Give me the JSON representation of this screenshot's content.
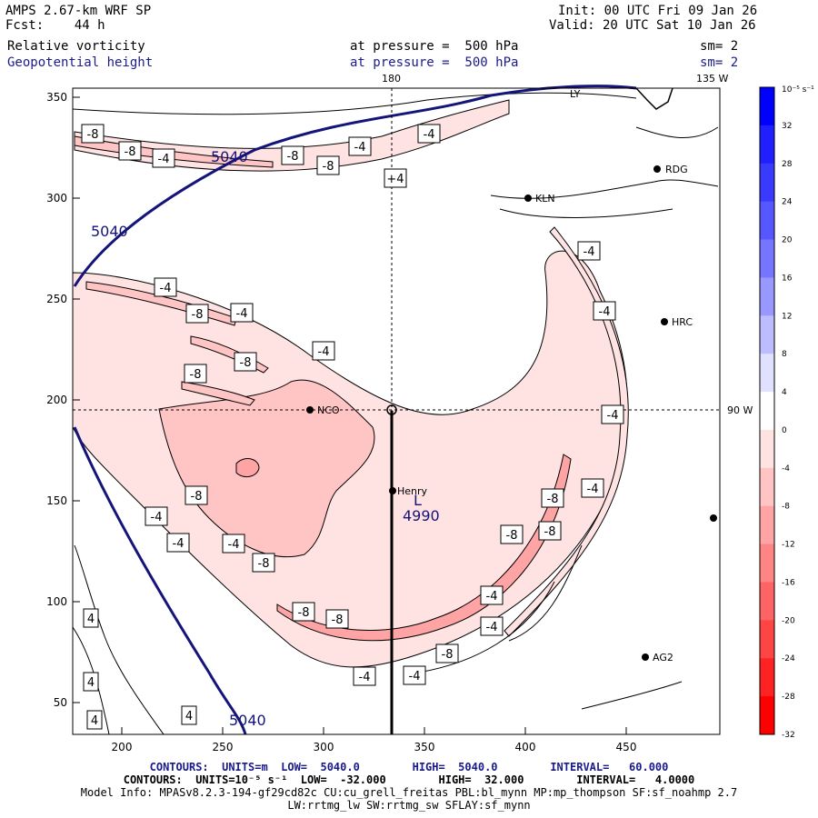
{
  "header": {
    "title": "AMPS 2.67-km WRF SP",
    "fcst": "Fcst:    44 h",
    "init": "Init: 00 UTC Fri 09 Jan 26",
    "valid": "Valid: 20 UTC Sat 10 Jan 26",
    "field1_name": "Relative vorticity",
    "field1_level": "at pressure =  500 hPa",
    "field1_sm": "sm= 2",
    "field2_name": "Geopotential height",
    "field2_level": "at pressure =  500 hPa",
    "field2_sm": "sm= 2"
  },
  "map": {
    "lon_180": "180",
    "lon_135w": "135 W",
    "lon_90w": "90 W",
    "x_ticks": [
      "200",
      "250",
      "300",
      "350",
      "400",
      "450"
    ],
    "y_ticks": [
      "350",
      "300",
      "250",
      "200",
      "150",
      "100",
      "50"
    ],
    "stations": [
      {
        "name": "RDG"
      },
      {
        "name": "KLN"
      },
      {
        "name": "HRC"
      },
      {
        "name": "NCO"
      },
      {
        "name": "Henry"
      },
      {
        "name": "AG2"
      },
      {
        "name": "LY"
      }
    ],
    "low_label": "L",
    "low_value": "4990",
    "height_labels": [
      "5040",
      "5040",
      "5040"
    ],
    "vort_labels": [
      "-8",
      "-8",
      "-4",
      "-8",
      "-8",
      "-4",
      "-4",
      "-8",
      "+4",
      "-4",
      "-8",
      "-4",
      "-4",
      "-8",
      "-4",
      "-8",
      "-4",
      "-8",
      "-8",
      "-4",
      "-8",
      "-4",
      "-4",
      "-8",
      "-4",
      "-8",
      "-8",
      "-4",
      "-4",
      "-8",
      "-4",
      "-4",
      "-4",
      "4",
      "4",
      "4",
      "4"
    ]
  },
  "colorbar": {
    "units": "10⁻⁵ s⁻¹",
    "labels": [
      "32",
      "28",
      "24",
      "20",
      "16",
      "12",
      "8",
      "4",
      "0",
      "-4",
      "-8",
      "-12",
      "-16",
      "-20",
      "-24",
      "-28",
      "-32"
    ],
    "colors": [
      "#0000ff",
      "#1f1fff",
      "#3a3aff",
      "#5757ff",
      "#7575ff",
      "#9898ff",
      "#bcbcff",
      "#e0e0ff",
      "#ffffff",
      "#ffe2e2",
      "#ffc4c4",
      "#ffa4a4",
      "#ff8484",
      "#ff6464",
      "#ff4444",
      "#ff2222",
      "#ff0000"
    ]
  },
  "footer": {
    "line1": "CONTOURS:  UNITS=m  LOW=  5040.0        HIGH=  5040.0        INTERVAL=   60.000",
    "line2": "CONTOURS:  UNITS=10⁻⁵ s⁻¹  LOW=  -32.000        HIGH=  32.000        INTERVAL=   4.0000",
    "line3": "Model Info: MPASv8.2.3-194-gf29cd82c CU:cu_grell_freitas PBL:bl_mynn MP:mp_thompson SF:sf_noahmp 2.7",
    "line4": "LW:rrtmg_lw SW:rrtmg_sw SFLAY:sf_mynn"
  }
}
